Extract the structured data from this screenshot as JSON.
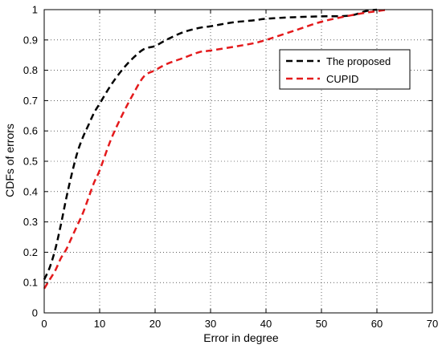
{
  "chart_data": {
    "type": "line",
    "title": "",
    "xlabel": "Error in degree",
    "ylabel": "CDFs of errors",
    "xlim": [
      0,
      70
    ],
    "ylim": [
      0,
      1
    ],
    "grid": true,
    "grid_style": "dotted",
    "legend_position": "top-right",
    "x_ticks": [
      0,
      10,
      20,
      30,
      40,
      50,
      60,
      70
    ],
    "y_ticks": [
      0,
      0.1,
      0.2,
      0.3,
      0.4,
      0.5,
      0.6,
      0.7,
      0.8,
      0.9,
      1
    ],
    "x_tick_labels": [
      "0",
      "10",
      "20",
      "30",
      "40",
      "50",
      "60",
      "70"
    ],
    "y_tick_labels": [
      "0",
      "0.1",
      "0.2",
      "0.3",
      "0.4",
      "0.5",
      "0.6",
      "0.7",
      "0.8",
      "0.9",
      "1"
    ],
    "series": [
      {
        "name": "The proposed",
        "color": "#000000",
        "line_style": "dashed",
        "x": [
          0,
          1,
          2,
          3,
          4,
          5,
          6,
          7,
          8,
          9,
          10,
          12,
          14,
          16,
          18,
          20,
          22,
          25,
          28,
          30,
          33,
          35,
          38,
          40,
          45,
          50,
          55,
          58,
          60
        ],
        "y": [
          0.11,
          0.15,
          0.21,
          0.29,
          0.38,
          0.46,
          0.53,
          0.58,
          0.62,
          0.66,
          0.69,
          0.75,
          0.8,
          0.84,
          0.87,
          0.88,
          0.9,
          0.925,
          0.94,
          0.945,
          0.955,
          0.96,
          0.965,
          0.97,
          0.975,
          0.978,
          0.98,
          0.995,
          1.0
        ]
      },
      {
        "name": "CUPID",
        "color": "#e41a1c",
        "line_style": "dashed",
        "x": [
          0,
          1,
          2,
          3,
          4,
          5,
          6,
          7,
          8,
          9,
          10,
          12,
          14,
          16,
          18,
          20,
          22,
          25,
          28,
          30,
          35,
          38,
          40,
          45,
          50,
          55,
          58,
          60,
          62
        ],
        "y": [
          0.08,
          0.11,
          0.14,
          0.18,
          0.21,
          0.25,
          0.29,
          0.33,
          0.38,
          0.43,
          0.47,
          0.57,
          0.65,
          0.72,
          0.78,
          0.8,
          0.82,
          0.84,
          0.86,
          0.865,
          0.88,
          0.89,
          0.9,
          0.93,
          0.96,
          0.98,
          0.99,
          0.995,
          1.0
        ]
      }
    ]
  }
}
